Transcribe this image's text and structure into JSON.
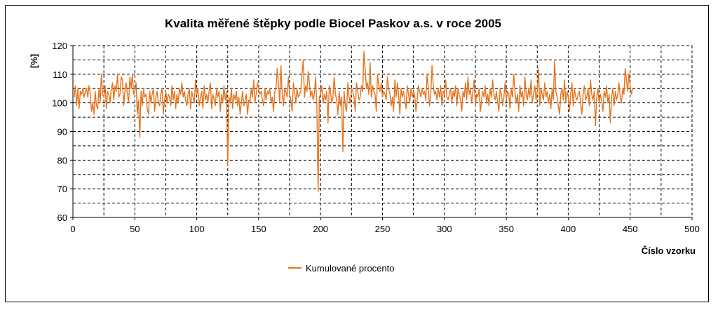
{
  "chart_data": {
    "type": "line",
    "title": "Kvalita měřené štěpky podle Biocel Paskov a.s. v roce 2005",
    "xlabel": "Číslo vzorku",
    "ylabel": "[%]",
    "xlim": [
      0,
      500
    ],
    "ylim": [
      60,
      120
    ],
    "x_ticks": [
      0,
      50,
      100,
      150,
      200,
      250,
      300,
      350,
      400,
      450,
      500
    ],
    "y_ticks": [
      60,
      70,
      80,
      90,
      100,
      110,
      120
    ],
    "x_tick_labels": [
      "0",
      "50",
      "100",
      "150",
      "200",
      "250",
      "300",
      "350",
      "400",
      "450",
      "500"
    ],
    "y_tick_labels": [
      "60",
      "70",
      "80",
      "90",
      "100",
      "110",
      "120"
    ],
    "grid": true,
    "legend_position": "bottom",
    "series": [
      {
        "name": "Kumulované procento",
        "color": "#E8731B",
        "x_start": 1,
        "x_step": 1,
        "values": [
          102,
          106,
          99,
          105,
          98,
          104,
          103,
          105,
          102,
          104,
          105,
          102,
          106,
          103,
          97,
          100,
          96,
          104,
          99,
          98,
          105,
          100,
          110,
          103,
          102,
          106,
          98,
          104,
          103,
          100,
          105,
          107,
          101,
          106,
          104,
          110,
          102,
          103,
          109,
          108,
          99,
          104,
          107,
          103,
          100,
          109,
          105,
          110,
          103,
          104,
          107,
          96,
          101,
          88,
          104,
          99,
          105,
          102,
          103,
          98,
          96,
          104,
          100,
          103,
          105,
          97,
          102,
          104,
          100,
          99,
          103,
          105,
          96,
          101,
          104,
          100,
          103,
          102,
          99,
          106,
          101,
          104,
          98,
          103,
          100,
          105,
          103,
          107,
          102,
          104,
          101,
          99,
          103,
          105,
          98,
          104,
          102,
          100,
          108,
          103,
          105,
          99,
          102,
          104,
          98,
          106,
          101,
          103,
          100,
          104,
          107,
          98,
          103,
          101,
          99,
          105,
          102,
          104,
          97,
          103,
          100,
          106,
          101,
          104,
          78,
          102,
          100,
          105,
          98,
          103,
          101,
          104,
          99,
          102,
          96,
          100,
          104,
          99,
          101,
          103,
          96,
          101,
          100,
          105,
          102,
          108,
          100,
          103,
          107,
          105,
          103,
          104,
          101,
          99,
          105,
          101,
          104,
          103,
          105,
          100,
          102,
          97,
          104,
          105,
          112,
          107,
          100,
          113,
          103,
          99,
          105,
          104,
          102,
          109,
          103,
          101,
          97,
          107,
          104,
          100,
          105,
          102,
          103,
          104,
          110,
          115,
          102,
          106,
          104,
          111,
          107,
          102,
          104,
          101,
          103,
          109,
          99,
          69,
          102,
          103,
          106,
          100,
          103,
          101,
          104,
          93,
          106,
          104,
          100,
          102,
          109,
          103,
          101,
          96,
          104,
          99,
          102,
          83,
          104,
          99,
          97,
          107,
          102,
          100,
          105,
          104,
          102,
          97,
          107,
          104,
          101,
          102,
          106,
          104,
          118,
          112,
          105,
          107,
          103,
          114,
          102,
          106,
          104,
          103,
          97,
          110,
          106,
          104,
          107,
          102,
          104,
          103,
          101,
          109,
          105,
          103,
          99,
          102,
          97,
          108,
          102,
          107,
          103,
          96,
          105,
          102,
          104,
          101,
          98,
          106,
          103,
          100,
          105,
          102,
          104,
          103,
          97,
          101,
          106,
          104,
          102,
          105,
          103,
          104,
          101,
          110,
          105,
          99,
          103,
          113,
          106,
          103,
          104,
          101,
          105,
          102,
          106,
          99,
          104,
          103,
          108,
          102,
          101,
          103,
          105,
          100,
          104,
          102,
          106,
          99,
          105,
          103,
          101,
          97,
          104,
          102,
          107,
          101,
          109,
          103,
          105,
          100,
          104,
          108,
          99,
          103,
          102,
          105,
          97,
          101,
          104,
          102,
          106,
          100,
          103,
          99,
          105,
          102,
          108,
          103,
          101,
          104,
          100,
          97,
          105,
          103,
          99,
          102,
          107,
          101,
          104,
          103,
          98,
          105,
          102,
          110,
          104,
          100,
          103,
          97,
          106,
          102,
          104,
          99,
          109,
          103,
          101,
          105,
          102,
          108,
          100,
          103,
          106,
          101,
          104,
          112,
          99,
          105,
          103,
          101,
          107,
          102,
          104,
          100,
          103,
          98,
          105,
          101,
          115,
          104,
          102,
          99,
          96,
          103,
          105,
          101,
          108,
          100,
          104,
          102,
          97,
          103,
          107,
          99,
          105,
          102,
          101,
          103,
          104,
          100,
          96,
          103,
          106,
          101,
          102,
          105,
          99,
          108,
          103,
          101,
          104,
          92,
          102,
          105,
          100,
          103,
          101,
          97,
          104,
          102,
          106,
          100,
          103,
          93,
          102,
          105,
          99,
          104,
          101,
          103,
          107,
          102,
          100,
          105,
          103,
          112,
          108,
          104,
          110,
          106,
          103,
          105
        ]
      }
    ]
  }
}
